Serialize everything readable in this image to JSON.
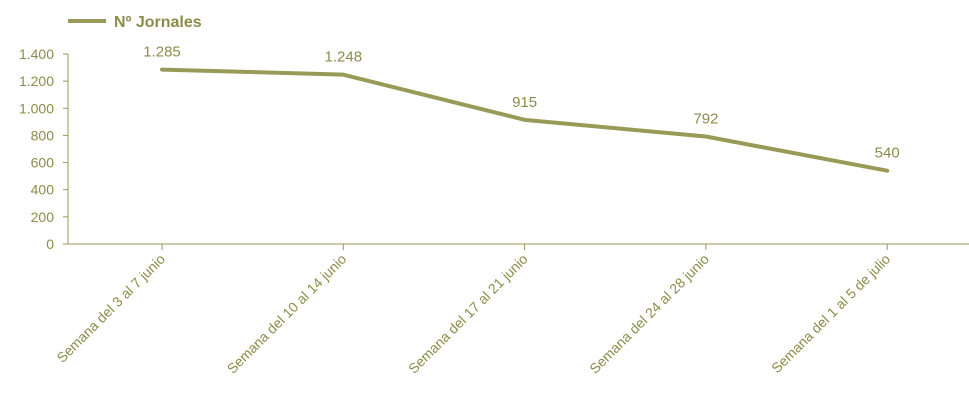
{
  "chart_data": {
    "type": "line",
    "categories": [
      "Semana del 3 al 7 junio",
      "Semana del 10 al 14 junio",
      "Semana del 17 al 21 junio",
      "Semana del 24 al 28 junio",
      "Semana del 1 al 5 de julio"
    ],
    "series": [
      {
        "name": "Nº Jornales",
        "values": [
          1285,
          1248,
          915,
          792,
          540
        ],
        "value_labels": [
          "1.285",
          "1.248",
          "915",
          "792",
          "540"
        ]
      }
    ],
    "ylim": [
      0,
      1400
    ],
    "yticks": [
      0,
      200,
      400,
      600,
      800,
      1000,
      1200,
      1400
    ],
    "ytick_labels": [
      "0",
      "200",
      "400",
      "600",
      "800",
      "1.000",
      "1.200",
      "1.400"
    ],
    "grid": false,
    "legend_position": "top-left",
    "colors": {
      "series": "#9a9a58",
      "axis": "#9a9a58",
      "text": "#8c8c4a",
      "legend_text": "#8c8c4a"
    }
  }
}
